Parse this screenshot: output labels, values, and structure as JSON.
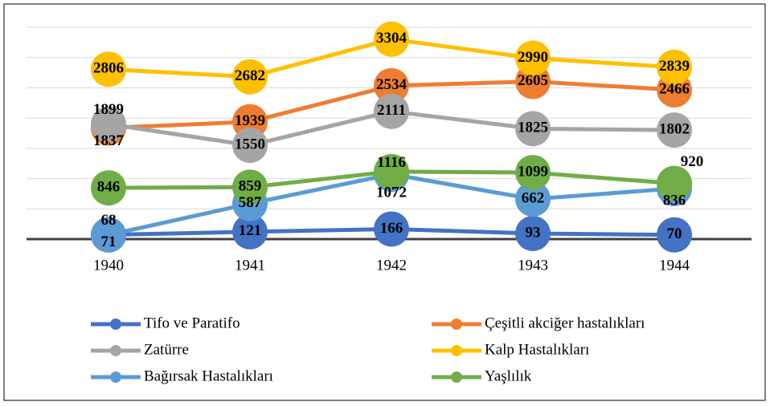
{
  "chart_data": {
    "type": "line",
    "categories": [
      "1940",
      "1941",
      "1942",
      "1943",
      "1944"
    ],
    "series": [
      {
        "name": "Tifo ve Paratifo",
        "color": "#4472c4",
        "values": [
          71,
          121,
          166,
          93,
          70
        ]
      },
      {
        "name": "Çeşitli akciğer hastalıkları",
        "color": "#ed7d31",
        "values": [
          1837,
          1939,
          2534,
          2605,
          2466
        ]
      },
      {
        "name": "Zatürre",
        "color": "#a5a5a5",
        "values": [
          1899,
          1550,
          2111,
          1825,
          1802
        ]
      },
      {
        "name": "Kalp Hastalıkları",
        "color": "#ffc000",
        "values": [
          2806,
          2682,
          3304,
          2990,
          2839
        ]
      },
      {
        "name": "Bağırsak Hastalıkları",
        "color": "#5b9bd5",
        "values": [
          68,
          587,
          1072,
          662,
          836
        ]
      },
      {
        "name": "Yaşlılık",
        "color": "#70ad47",
        "values": [
          846,
          859,
          1116,
          1099,
          920
        ]
      }
    ],
    "ylim": [
      0,
      3500
    ],
    "yticks": [
      0,
      500,
      1000,
      1500,
      2000,
      2500,
      3000,
      3500
    ],
    "grid": true,
    "legend": "bottom"
  }
}
